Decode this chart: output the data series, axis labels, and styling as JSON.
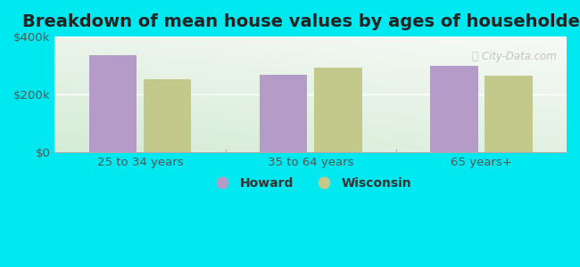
{
  "title": "Breakdown of mean house values by ages of householders",
  "categories": [
    "25 to 34 years",
    "35 to 64 years",
    "65 years+"
  ],
  "howard_values": [
    335000,
    268000,
    298000
  ],
  "wisconsin_values": [
    252000,
    292000,
    265000
  ],
  "howard_color": "#b59cc8",
  "wisconsin_color": "#c2c98a",
  "background_outer": "#00e8f0",
  "background_inner_top": "#f5faf5",
  "background_inner_bottom": "#d8ecd4",
  "ylim": [
    0,
    400000
  ],
  "yticks": [
    0,
    200000,
    400000
  ],
  "ytick_labels": [
    "$0",
    "$200k",
    "$400k"
  ],
  "bar_width": 0.28,
  "legend_howard": "Howard",
  "legend_wisconsin": "Wisconsin",
  "title_fontsize": 14,
  "tick_fontsize": 9.5,
  "legend_fontsize": 10
}
